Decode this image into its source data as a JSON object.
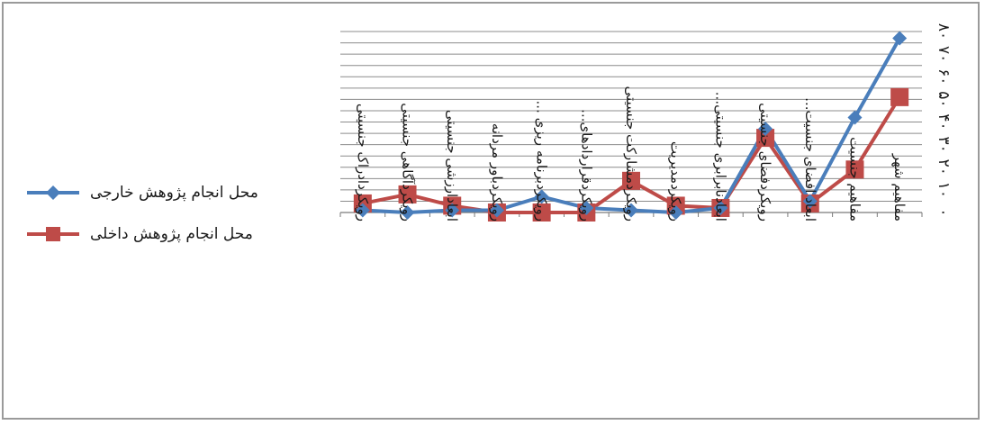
{
  "colors": {
    "external": "#4a7ebb",
    "internal": "#be4b48",
    "grid": "#8c8c8c",
    "frame": "#9a9a9a"
  },
  "chart_data": {
    "type": "line",
    "categories": [
      "رویکردادراک جنسیتی",
      "رویکردآگاهی جنسیتی",
      "ابعادارزشی جنسیتی",
      "رویکردباور مردانه",
      "رویکردبرنامه ریزی ...",
      "رویکردقراردادهای...",
      "رویکردمشارکت جنسیتی",
      "رویکردمدیریت",
      "ابعادنابرابری جنسیتی...",
      "رویکردفضای جنسیتی",
      "ابعاد افضای جنسیت...",
      "مفاهیم جنسیت",
      "مفاهیم شهر"
    ],
    "series": [
      {
        "name": "محل انجام پژوهش خارجی",
        "values": [
          1,
          0,
          1,
          1,
          7,
          2,
          1,
          0,
          2,
          37,
          5,
          42,
          77
        ],
        "color": "#4a7ebb",
        "marker": "diamond"
      },
      {
        "name": "محل انجام پژوهش داخلی",
        "values": [
          4,
          8,
          3,
          0,
          0,
          0,
          14,
          3,
          2,
          33,
          4,
          19,
          51
        ],
        "color": "#be4b48",
        "marker": "square"
      }
    ],
    "yticks": [
      "۰",
      "۱۰",
      "۲۰",
      "۳۰",
      "۴۰",
      "۵۰",
      "۶۰",
      "۷۰",
      "۸۰"
    ],
    "ylim": [
      0,
      80
    ],
    "grid": true,
    "legend_position": "left",
    "xlabel": "",
    "ylabel": "",
    "title": ""
  }
}
